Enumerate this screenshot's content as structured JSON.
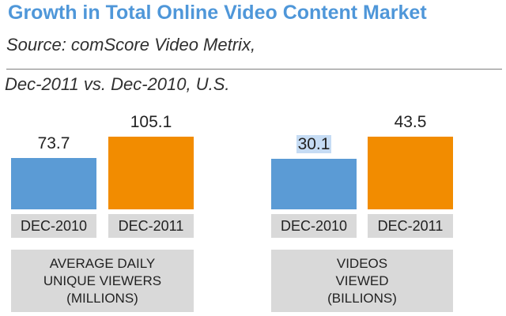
{
  "title": "Growth in Total Online Video Content Market",
  "source": "Source: comScore Video Metrix,",
  "date_range": "Dec-2011 vs. Dec-2010, U.S.",
  "colors": {
    "dec2010": "#5b9bd5",
    "dec2011": "#f28c00",
    "title": "#4f97d9",
    "label_bg": "#d9d9d9"
  },
  "chart_data": [
    {
      "type": "bar",
      "categories": [
        "DEC-2010",
        "DEC-2011"
      ],
      "values": [
        73.7,
        105.1
      ],
      "value_labels": [
        "73.7",
        "105.1"
      ],
      "group_label": [
        "AVERAGE DAILY",
        "UNIQUE VIEWERS",
        "(MILLIONS)"
      ],
      "ylim": [
        0,
        105.1
      ]
    },
    {
      "type": "bar",
      "categories": [
        "DEC-2010",
        "DEC-2011"
      ],
      "values": [
        30.1,
        43.5
      ],
      "value_labels": [
        "30.1",
        "43.5"
      ],
      "group_label": [
        "VIDEOS",
        "VIEWED",
        "(BILLIONS)"
      ],
      "ylim": [
        0,
        43.5
      ]
    }
  ]
}
